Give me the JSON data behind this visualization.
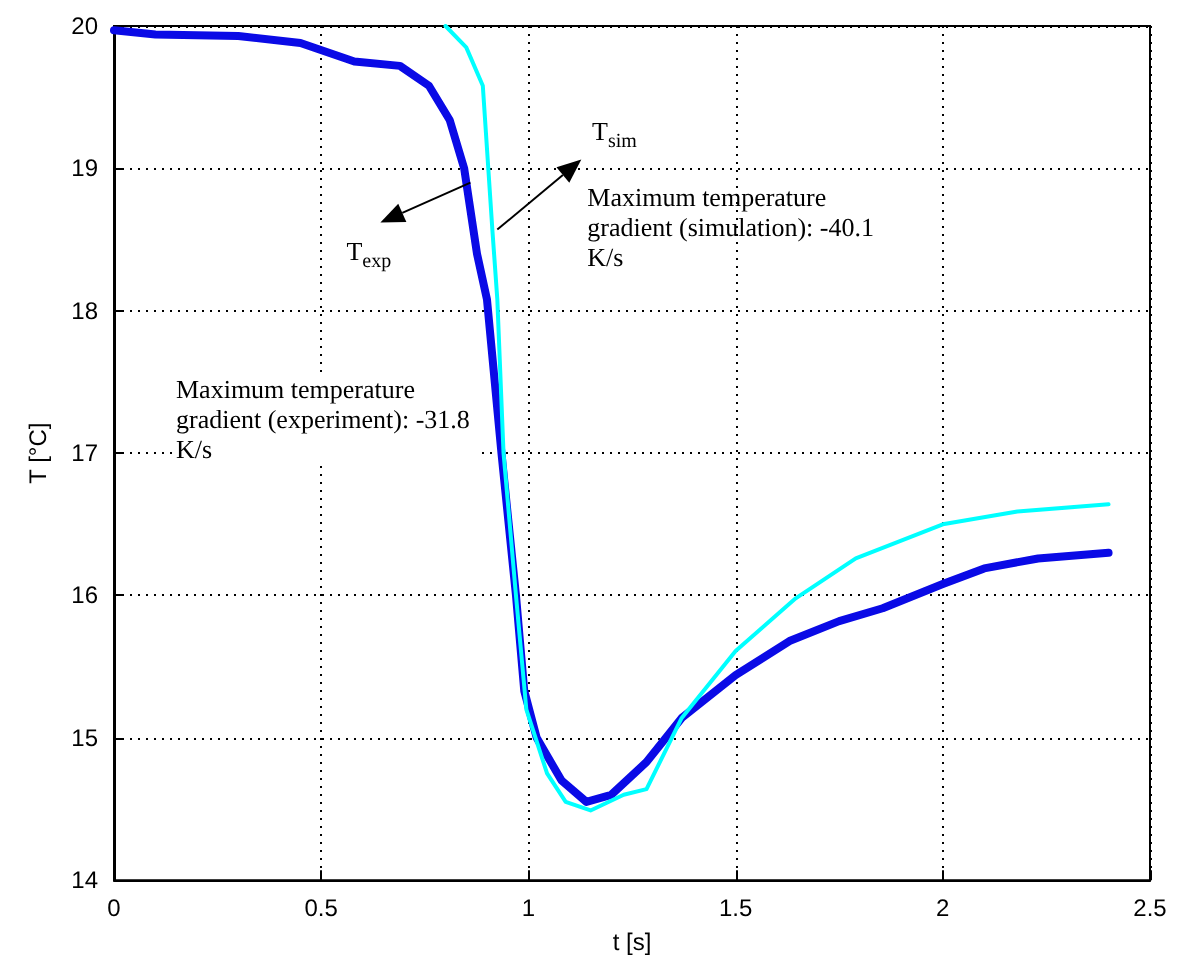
{
  "chart_data": {
    "type": "line",
    "xlabel": "t [s]",
    "ylabel": "T [°C]",
    "xlim": [
      0,
      2.5
    ],
    "xticks": [
      0,
      0.5,
      1,
      1.5,
      2,
      2.5
    ],
    "ylim": [
      14,
      20
    ],
    "yticks": [
      14,
      15,
      16,
      17,
      18,
      19,
      20
    ],
    "grid": true,
    "marker": "none",
    "line_style": "solid",
    "series": [
      {
        "color": "#0a0ae6",
        "x": [
          0,
          0.1,
          0.3,
          0.45,
          0.58,
          0.69,
          0.76,
          0.81,
          0.845,
          0.876,
          0.9,
          0.935,
          0.97,
          0.99,
          1.02,
          1.08,
          1.14,
          1.2,
          1.285,
          1.37,
          1.5,
          1.63,
          1.75,
          1.855,
          2.0,
          2.1,
          2.23,
          2.4
        ],
        "values": [
          19.97,
          19.94,
          19.93,
          19.88,
          19.75,
          19.72,
          19.58,
          19.34,
          19.0,
          18.4,
          18.08,
          17.0,
          16.0,
          15.33,
          15.0,
          14.7,
          14.55,
          14.6,
          14.83,
          15.14,
          15.44,
          15.68,
          15.82,
          15.91,
          16.08,
          16.19,
          16.26,
          16.3
        ]
      },
      {
        "color": "#00ffff",
        "x": [
          0.8,
          0.85,
          0.89,
          0.913,
          0.925,
          0.94,
          0.97,
          0.995,
          1.045,
          1.09,
          1.15,
          1.23,
          1.285,
          1.37,
          1.5,
          1.645,
          1.79,
          2.0,
          2.18,
          2.4
        ],
        "values": [
          20.0,
          19.85,
          19.58,
          18.57,
          18.08,
          17.0,
          16.0,
          15.2,
          14.75,
          14.55,
          14.49,
          14.6,
          14.64,
          15.14,
          15.61,
          15.98,
          16.26,
          16.5,
          16.59,
          16.64
        ]
      }
    ],
    "annotations": [
      {
        "text": "T$_{exp}$",
        "x": 0.86,
        "y": 18.9
      },
      "T$_{sim}$",
      {
        "text": "Maximum temperature gradient (simulation): -40.1 K/s",
        "x": 0.925,
        "y": 18.57
      },
      "Maximum temperature gradient (experiment): -31.8 K/s"
    ]
  }
}
